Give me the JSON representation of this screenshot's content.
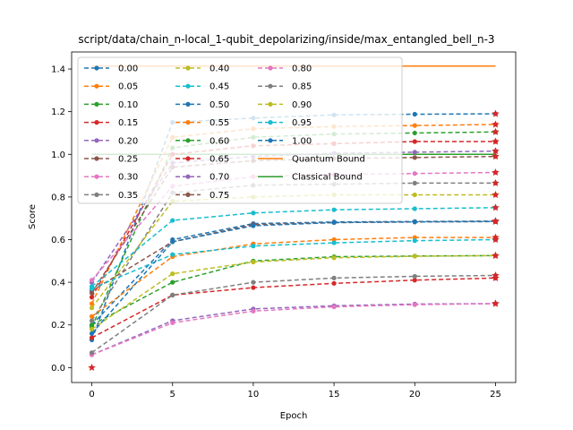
{
  "chart_data": {
    "type": "line",
    "title": "script/data/chain_n-local_1-qubit_depolarizing/inside/max_entangled_bell_n-3",
    "xlabel": "Epoch",
    "ylabel": "Score",
    "xlim": [
      -1.25,
      26.25
    ],
    "ylim": [
      -0.07,
      1.48
    ],
    "x": [
      0,
      5,
      10,
      15,
      20,
      25
    ],
    "xticks": [
      "0",
      "5",
      "10",
      "15",
      "20",
      "25"
    ],
    "yticks": [
      "0.0",
      "0.2",
      "0.4",
      "0.6",
      "0.8",
      "1.0",
      "1.2",
      "1.4"
    ],
    "legend_location": "upper-left",
    "legend_columns": 3,
    "series": [
      {
        "name": "0.00",
        "color": "#1f77b4",
        "values": [
          0.13,
          1.15,
          1.17,
          1.185,
          1.188,
          1.19
        ]
      },
      {
        "name": "0.05",
        "color": "#ff7f0e",
        "values": [
          0.3,
          1.08,
          1.12,
          1.13,
          1.135,
          1.14
        ]
      },
      {
        "name": "0.10",
        "color": "#2ca02c",
        "values": [
          0.19,
          1.03,
          1.08,
          1.095,
          1.1,
          1.105
        ]
      },
      {
        "name": "0.15",
        "color": "#d62728",
        "values": [
          0.33,
          1.0,
          1.04,
          1.05,
          1.06,
          1.06
        ]
      },
      {
        "name": "0.20",
        "color": "#9467bd",
        "values": [
          0.4,
          0.96,
          0.99,
          1.005,
          1.01,
          1.015
        ]
      },
      {
        "name": "0.25",
        "color": "#8c564b",
        "values": [
          0.35,
          0.94,
          0.97,
          0.98,
          0.985,
          0.99
        ]
      },
      {
        "name": "0.30",
        "color": "#e377c2",
        "values": [
          0.41,
          0.85,
          0.895,
          0.905,
          0.91,
          0.915
        ]
      },
      {
        "name": "0.35",
        "color": "#7f7f7f",
        "values": [
          0.22,
          0.82,
          0.855,
          0.86,
          0.865,
          0.865
        ]
      },
      {
        "name": "0.40",
        "color": "#bcbd22",
        "values": [
          0.28,
          0.78,
          0.8,
          0.81,
          0.81,
          0.81
        ]
      },
      {
        "name": "0.45",
        "color": "#17becf",
        "values": [
          0.38,
          0.69,
          0.725,
          0.74,
          0.745,
          0.75
        ]
      },
      {
        "name": "0.50",
        "color": "#1f77b4",
        "values": [
          0.2,
          0.6,
          0.675,
          0.683,
          0.685,
          0.687
        ]
      },
      {
        "name": "0.55",
        "color": "#ff7f0e",
        "values": [
          0.24,
          0.52,
          0.58,
          0.6,
          0.61,
          0.61
        ]
      },
      {
        "name": "0.60",
        "color": "#2ca02c",
        "values": [
          0.2,
          0.4,
          0.5,
          0.52,
          0.523,
          0.525
        ]
      },
      {
        "name": "0.65",
        "color": "#d62728",
        "values": [
          0.14,
          0.34,
          0.375,
          0.395,
          0.41,
          0.42
        ]
      },
      {
        "name": "0.70",
        "color": "#9467bd",
        "values": [
          0.06,
          0.22,
          0.275,
          0.29,
          0.298,
          0.3
        ]
      },
      {
        "name": "0.75",
        "color": "#8c564b",
        "values": [
          0.36,
          0.59,
          0.67,
          0.68,
          0.683,
          0.685
        ]
      },
      {
        "name": "0.80",
        "color": "#e377c2",
        "values": [
          0.06,
          0.21,
          0.265,
          0.285,
          0.295,
          0.3
        ]
      },
      {
        "name": "0.85",
        "color": "#7f7f7f",
        "values": [
          0.07,
          0.34,
          0.4,
          0.42,
          0.428,
          0.432
        ]
      },
      {
        "name": "0.90",
        "color": "#bcbd22",
        "values": [
          0.18,
          0.44,
          0.495,
          0.515,
          0.522,
          0.525
        ]
      },
      {
        "name": "0.95",
        "color": "#17becf",
        "values": [
          0.37,
          0.53,
          0.57,
          0.585,
          0.595,
          0.6
        ]
      },
      {
        "name": "1.00",
        "color": "#1f77b4",
        "values": [
          0.16,
          0.59,
          0.665,
          0.68,
          0.683,
          0.685
        ]
      }
    ],
    "endpoint_markers": {
      "x": 25,
      "values": [
        1.19,
        1.14,
        1.105,
        1.06,
        1.015,
        0.99,
        0.915,
        0.865,
        0.81,
        0.75,
        0.687,
        0.61,
        0.525,
        0.42,
        0.3,
        0.685,
        0.3,
        0.432,
        0.525,
        0.6,
        0.685
      ],
      "extra_start_marker": {
        "x": 0,
        "value": 0.0
      },
      "color": "#d62728"
    },
    "reference_lines": [
      {
        "name": "Quantum Bound",
        "color": "#ff7f0e",
        "value": 1.414
      },
      {
        "name": "Classical Bound",
        "color": "#2ca02c",
        "value": 1.0
      }
    ]
  }
}
